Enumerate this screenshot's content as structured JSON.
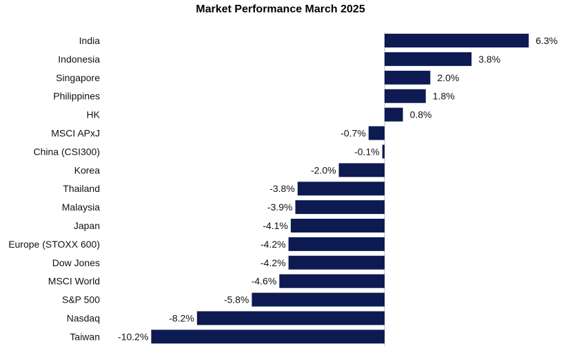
{
  "chart_data": {
    "type": "bar",
    "orientation": "horizontal",
    "title": "Market Performance March 2025",
    "categories": [
      "India",
      "Indonesia",
      "Singapore",
      "Philippines",
      "HK",
      "MSCI APxJ",
      "China (CSI300)",
      "Korea",
      "Thailand",
      "Malaysia",
      "Japan",
      "Europe (STOXX 600)",
      "Dow Jones",
      "MSCI World",
      "S&P 500",
      "Nasdaq",
      "Taiwan"
    ],
    "values": [
      6.3,
      3.8,
      2.0,
      1.8,
      0.8,
      -0.7,
      -0.1,
      -2.0,
      -3.8,
      -3.9,
      -4.1,
      -4.2,
      -4.2,
      -4.6,
      -5.8,
      -8.2,
      -10.2
    ],
    "value_labels": [
      "6.3%",
      "3.8%",
      "2.0%",
      "1.8%",
      "0.8%",
      "-0.7%",
      "-0.1%",
      "-2.0%",
      "-3.8%",
      "-3.9%",
      "-4.1%",
      "-4.2%",
      "-4.2%",
      "-4.6%",
      "-5.8%",
      "-8.2%",
      "-10.2%"
    ],
    "xlim": [
      -10.2,
      6.3
    ],
    "grid": false,
    "legend": "none",
    "bar_color": "#0d1b52"
  }
}
